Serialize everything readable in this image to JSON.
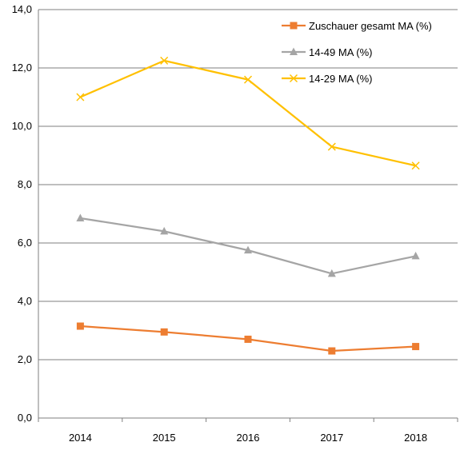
{
  "chart_data": {
    "type": "line",
    "categories": [
      "2014",
      "2015",
      "2016",
      "2017",
      "2018"
    ],
    "ylim": [
      0,
      14
    ],
    "y_ticks": [
      "0,0",
      "2,0",
      "4,0",
      "6,0",
      "8,0",
      "10,0",
      "12,0",
      "14,0"
    ],
    "y_tick_values": [
      0,
      2,
      4,
      6,
      8,
      10,
      12,
      14
    ],
    "grid": "horizontal",
    "legend_position": "top-right",
    "series": [
      {
        "name": "Zuschauer gesamt MA (%)",
        "values": [
          3.15,
          2.95,
          2.7,
          2.3,
          2.45
        ],
        "color": "#ED7D31",
        "marker": "square"
      },
      {
        "name": "14-49 MA (%)",
        "values": [
          6.85,
          6.4,
          5.75,
          4.95,
          5.55
        ],
        "color": "#A5A5A5",
        "marker": "triangle"
      },
      {
        "name": "14-29 MA (%)",
        "values": [
          11.0,
          12.25,
          11.6,
          9.3,
          8.65
        ],
        "color": "#FFC000",
        "marker": "x"
      }
    ]
  }
}
